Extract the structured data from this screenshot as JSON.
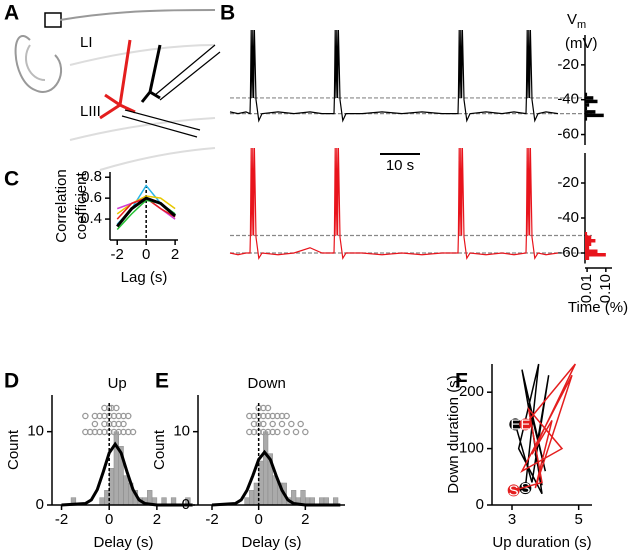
{
  "panels": [
    "A",
    "B",
    "C",
    "D",
    "E",
    "F"
  ],
  "diagram": {
    "labels": [
      "LI",
      "LIII"
    ]
  },
  "chart_data": [
    {
      "type": "trace",
      "color": "#000000",
      "xlim": [
        0,
        82
      ],
      "ylim": [
        -66,
        0
      ],
      "yticks": [
        -60,
        -40,
        -20
      ],
      "ylabel": {
        "main": "V",
        "sub": "m",
        "unit": "(mV)"
      },
      "hlines": [
        -39,
        -48
      ],
      "x": [
        0,
        2,
        4,
        5,
        5.1,
        5.3,
        5.5,
        5.7,
        5.9,
        6.1,
        6.5,
        7.2,
        8,
        12,
        16,
        20,
        23,
        26,
        26.1,
        26.3,
        26.5,
        26.7,
        26.9,
        27.1,
        27.5,
        28.2,
        29,
        33,
        38,
        43,
        48,
        53,
        57,
        57.1,
        57.3,
        57.5,
        57.7,
        57.9,
        58.1,
        58.5,
        59.2,
        60,
        64,
        68,
        71,
        74,
        74.1,
        74.3,
        74.5,
        74.7,
        74.9,
        75.1,
        75.5,
        76.2,
        77,
        79,
        82
      ],
      "values": [
        -47,
        -48,
        -47,
        -48,
        -39,
        0,
        -39,
        0,
        -39,
        0,
        -40,
        -52,
        -48,
        -47,
        -48,
        -47,
        -48,
        -48,
        -39,
        0,
        -39,
        0,
        -39,
        0,
        -40,
        -52,
        -48,
        -48,
        -47,
        -48,
        -47,
        -48,
        -48,
        -39,
        0,
        -39,
        0,
        -39,
        0,
        -40,
        -52,
        -48,
        -47,
        -48,
        -47,
        -48,
        -39,
        0,
        -39,
        0,
        -39,
        0,
        -40,
        -52,
        -48,
        -47,
        -48
      ],
      "hist": {
        "bins": [
          -52,
          -50,
          -48,
          -46,
          -44,
          -42,
          -40,
          -38,
          -36
        ],
        "values": [
          0.01,
          0.09,
          0.05,
          0.01,
          0.02,
          0.06,
          0.04,
          0.01
        ]
      },
      "scalebar": {
        "value": 10,
        "label": "10 s"
      }
    },
    {
      "type": "trace",
      "color": "#e8141c",
      "xlim": [
        0,
        82
      ],
      "ylim": [
        -66,
        0
      ],
      "yticks": [
        -60,
        -40,
        -20
      ],
      "hlines": [
        -50,
        -60
      ],
      "x": [
        0,
        2,
        4,
        5,
        5.1,
        5.3,
        5.5,
        5.7,
        5.9,
        6.1,
        6.5,
        7.2,
        8,
        12,
        16,
        20,
        23,
        26,
        26.1,
        26.3,
        26.5,
        26.7,
        26.9,
        27.1,
        27.5,
        28.2,
        29,
        33,
        38,
        43,
        48,
        53,
        57,
        57.1,
        57.3,
        57.5,
        57.7,
        57.9,
        58.1,
        58.5,
        59.2,
        60,
        64,
        68,
        71,
        74,
        74.1,
        74.3,
        74.5,
        74.7,
        74.9,
        75.1,
        75.5,
        76.2,
        77,
        79,
        82
      ],
      "values": [
        -60,
        -61,
        -60,
        -60,
        -50,
        0,
        -50,
        0,
        -50,
        0,
        -51,
        -63,
        -60,
        -61,
        -60,
        -57,
        -60,
        -60,
        -50,
        0,
        -50,
        0,
        -50,
        0,
        -51,
        -63,
        -60,
        -60,
        -61,
        -60,
        -61,
        -60,
        -60,
        -50,
        0,
        -50,
        0,
        -50,
        0,
        -51,
        -63,
        -60,
        -61,
        -60,
        -61,
        -60,
        -50,
        0,
        -50,
        0,
        -50,
        0,
        -51,
        -63,
        -60,
        -61,
        -60
      ],
      "hist": {
        "bins": [
          -64,
          -62,
          -60,
          -58,
          -56,
          -54,
          -52,
          -50,
          -48
        ],
        "values": [
          0.02,
          0.1,
          0.06,
          0.02,
          0.03,
          0.05,
          0.03,
          0.01
        ]
      },
      "hist_xlim": [
        0,
        0.12
      ],
      "hist_xticks": [
        0.01,
        {
          "value": 0.1,
          "label": "0.10"
        }
      ],
      "hist_xlabel": "Time (%)"
    },
    {
      "type": "line",
      "xlim": [
        -2.5,
        2.2
      ],
      "ylim": [
        0.2,
        0.85
      ],
      "xticks": [
        -2,
        0,
        2
      ],
      "yticks": [
        0.4,
        0.6,
        0.8
      ],
      "xlabel": "Lag (s)",
      "ylabel": [
        "Correlation",
        "coefficient"
      ],
      "vline": 0,
      "x": [
        -2,
        -1,
        0,
        1,
        2
      ],
      "series": [
        {
          "color": "#29b6e8",
          "values": [
            0.35,
            0.5,
            0.72,
            0.55,
            0.45
          ]
        },
        {
          "color": "#e8c800",
          "values": [
            0.45,
            0.55,
            0.62,
            0.6,
            0.5
          ]
        },
        {
          "color": "#d23cd2",
          "values": [
            0.5,
            0.55,
            0.6,
            0.5,
            0.4
          ]
        },
        {
          "color": "#e41e1e",
          "values": [
            0.4,
            0.55,
            0.6,
            0.5,
            0.42
          ]
        },
        {
          "color": "#22c032",
          "values": [
            0.3,
            0.45,
            0.58,
            0.55,
            0.45
          ]
        },
        {
          "color": "#000000",
          "values": [
            0.33,
            0.5,
            0.6,
            0.55,
            0.43
          ],
          "width": 3
        }
      ]
    },
    {
      "type": "histogram",
      "title": "Up",
      "xlim": [
        -2.4,
        3.6
      ],
      "ylim": [
        0,
        15
      ],
      "xticks": [
        -2,
        0,
        2
      ],
      "yticks": [
        0,
        10
      ],
      "xlabel": "Delay (s)",
      "ylabel": "Count",
      "vline": 0,
      "color": "#aaaaaa",
      "bins": [
        -1.6,
        -1.4,
        -1.2,
        -1,
        -0.8,
        -0.6,
        -0.4,
        -0.2,
        0,
        0.2,
        0.4,
        0.6,
        0.8,
        1,
        1.2,
        1.4,
        1.6,
        1.8,
        2,
        2.2,
        2.4,
        2.6,
        2.8,
        3,
        3.2,
        3.4,
        3.6
      ],
      "values": [
        1,
        0,
        0,
        0,
        0,
        0,
        1,
        2,
        5,
        10,
        8,
        4,
        3,
        2,
        1,
        1,
        2,
        1,
        0,
        1,
        0,
        1,
        0,
        0,
        1,
        0
      ],
      "fit": {
        "x": [
          -2,
          -1,
          -0.75,
          -0.5,
          -0.25,
          0,
          0.25,
          0.5,
          0.75,
          1,
          1.25,
          1.5,
          2,
          3.5
        ],
        "values": [
          0,
          0.2,
          0.7,
          2.1,
          4.5,
          7.1,
          8.3,
          7.1,
          4.5,
          2.1,
          0.7,
          0.2,
          0,
          0
        ]
      },
      "dots": [
        [
          -0.2,
          0,
          0.1,
          0.3
        ],
        [
          -1,
          -0.6,
          -0.4,
          -0.2,
          0,
          0.2,
          0.4,
          0.6,
          0.8
        ],
        [
          -0.6,
          -0.2,
          0,
          0.2,
          0.4,
          0.6
        ],
        [
          -1,
          -0.8,
          -0.6,
          -0.4,
          -0.2,
          0,
          0.2,
          0.4,
          0.6,
          0.8,
          1
        ]
      ]
    },
    {
      "type": "histogram",
      "title": "Down",
      "xlim": [
        -2.6,
        3.7
      ],
      "ylim": [
        0,
        15
      ],
      "xticks": [
        -2,
        0,
        2
      ],
      "yticks": [
        0,
        10
      ],
      "xlabel": "Delay (s)",
      "ylabel": "Count",
      "vline": 0,
      "color": "#aaaaaa",
      "bins": [
        -1.6,
        -1.4,
        -1.2,
        -1,
        -0.8,
        -0.6,
        -0.4,
        -0.2,
        0,
        0.2,
        0.4,
        0.6,
        0.8,
        1,
        1.2,
        1.4,
        1.6,
        1.8,
        2,
        2.2,
        2.4,
        2.6,
        2.8,
        3,
        3.2,
        3.4,
        3.6
      ],
      "values": [
        0,
        0,
        0,
        0,
        0,
        1,
        2,
        3,
        6,
        10,
        7,
        4,
        3,
        3,
        1,
        2,
        1,
        2,
        1,
        1,
        0,
        1,
        1,
        0,
        1,
        0
      ],
      "fit": {
        "x": [
          -2,
          -1,
          -0.75,
          -0.5,
          -0.25,
          0,
          0.25,
          0.5,
          0.75,
          1,
          1.25,
          1.5,
          2,
          3.5
        ],
        "values": [
          0,
          0.2,
          0.7,
          2,
          4,
          6.2,
          7.2,
          6.2,
          4,
          2,
          0.7,
          0.2,
          0,
          0
        ]
      },
      "dots": [
        [
          0,
          0.2,
          0.4
        ],
        [
          -0.4,
          -0.2,
          0,
          0.2,
          0.4,
          0.6,
          0.8,
          1,
          1.2
        ],
        [
          -0.2,
          0,
          0.2,
          0.6,
          1,
          1.4,
          1.8
        ],
        [
          -0.4,
          -0.2,
          0,
          0.2,
          0.4,
          0.6,
          0.8,
          1.2,
          1.6,
          2
        ]
      ]
    },
    {
      "type": "line",
      "xlim": [
        2.4,
        5.4
      ],
      "ylim": [
        0,
        250
      ],
      "xticks": [
        3,
        5
      ],
      "yticks": [
        0,
        100,
        200
      ],
      "xlabel": "Up duration (s)",
      "ylabel": "Down duration (s)",
      "start_label": "S",
      "end_label": "E",
      "series": [
        {
          "color": "#000000",
          "x": [
            3.4,
            3.8,
            3.2,
            3.9,
            3.5,
            4.0,
            3.3,
            3.9,
            3.7,
            4.1,
            3.6,
            3.1
          ],
          "values": [
            30,
            250,
            100,
            20,
            180,
            60,
            240,
            35,
            90,
            230,
            40,
            143
          ]
        },
        {
          "color": "#e41e1e",
          "x": [
            3.05,
            3.9,
            3.5,
            4.5,
            3.3,
            4.8,
            3.7,
            4.2,
            3.6,
            4.9,
            3.4
          ],
          "values": [
            26,
            40,
            170,
            100,
            60,
            230,
            30,
            150,
            90,
            250,
            143
          ]
        }
      ]
    }
  ]
}
